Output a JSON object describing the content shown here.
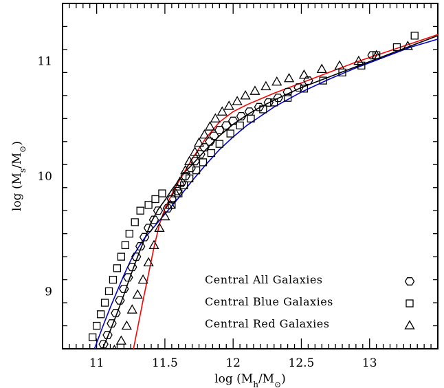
{
  "chart_data": {
    "type": "scatter",
    "title": "",
    "xlabel": "log (M_h/M_⊙)",
    "ylabel": "log (M_s/M_⊙)",
    "xlim": [
      10.75,
      13.5
    ],
    "ylim": [
      8.5,
      11.5
    ],
    "x_ticks": [
      11,
      11.5,
      12,
      12.5,
      13
    ],
    "x_tick_labels": [
      "11",
      "11.5",
      "12",
      "12.5",
      "13"
    ],
    "y_ticks": [
      9,
      10,
      11
    ],
    "y_tick_labels": [
      "9",
      "10",
      "11"
    ],
    "legend": "bottom-right",
    "series": [
      {
        "name": "Central All Galaxies",
        "marker": "hexagon",
        "color": "#000000",
        "points": [
          [
            11.05,
            8.54
          ],
          [
            11.08,
            8.62
          ],
          [
            11.11,
            8.72
          ],
          [
            11.14,
            8.81
          ],
          [
            11.17,
            8.92
          ],
          [
            11.2,
            9.02
          ],
          [
            11.23,
            9.12
          ],
          [
            11.26,
            9.21
          ],
          [
            11.29,
            9.3
          ],
          [
            11.32,
            9.39
          ],
          [
            11.35,
            9.47
          ],
          [
            11.38,
            9.55
          ],
          [
            11.42,
            9.62
          ],
          [
            11.45,
            9.7
          ],
          [
            11.52,
            9.72
          ],
          [
            11.55,
            9.8
          ],
          [
            11.59,
            9.87
          ],
          [
            11.62,
            9.94
          ],
          [
            11.65,
            10.0
          ],
          [
            11.69,
            10.07
          ],
          [
            11.72,
            10.13
          ],
          [
            11.76,
            10.19
          ],
          [
            11.79,
            10.25
          ],
          [
            11.83,
            10.3
          ],
          [
            11.86,
            10.35
          ],
          [
            11.9,
            10.4
          ],
          [
            11.95,
            10.44
          ],
          [
            12.0,
            10.48
          ],
          [
            12.06,
            10.52
          ],
          [
            12.12,
            10.56
          ],
          [
            12.19,
            10.6
          ],
          [
            12.26,
            10.64
          ],
          [
            12.33,
            10.68
          ],
          [
            12.4,
            10.73
          ],
          [
            12.48,
            10.77
          ],
          [
            12.55,
            10.83
          ],
          [
            13.02,
            11.05
          ]
        ]
      },
      {
        "name": "Central Blue Galaxies",
        "marker": "square",
        "color": "#000000",
        "points": [
          [
            10.97,
            8.6
          ],
          [
            11.0,
            8.7
          ],
          [
            11.03,
            8.8
          ],
          [
            11.06,
            8.9
          ],
          [
            11.09,
            9.0
          ],
          [
            11.12,
            9.1
          ],
          [
            11.15,
            9.2
          ],
          [
            11.18,
            9.3
          ],
          [
            11.21,
            9.4
          ],
          [
            11.24,
            9.5
          ],
          [
            11.28,
            9.6
          ],
          [
            11.32,
            9.7
          ],
          [
            11.38,
            9.75
          ],
          [
            11.43,
            9.8
          ],
          [
            11.48,
            9.85
          ],
          [
            11.55,
            9.75
          ],
          [
            11.6,
            9.85
          ],
          [
            11.64,
            9.92
          ],
          [
            11.68,
            9.98
          ],
          [
            11.73,
            10.05
          ],
          [
            11.78,
            10.12
          ],
          [
            11.84,
            10.2
          ],
          [
            11.9,
            10.28
          ],
          [
            11.98,
            10.37
          ],
          [
            12.05,
            10.44
          ],
          [
            12.13,
            10.5
          ],
          [
            12.22,
            10.58
          ],
          [
            12.3,
            10.64
          ],
          [
            12.4,
            10.68
          ],
          [
            12.52,
            10.76
          ],
          [
            12.66,
            10.83
          ],
          [
            12.8,
            10.9
          ],
          [
            12.94,
            10.96
          ],
          [
            13.05,
            11.05
          ],
          [
            13.2,
            11.12
          ],
          [
            13.33,
            11.22
          ]
        ]
      },
      {
        "name": "Central Red Galaxies",
        "marker": "triangle",
        "color": "#000000",
        "points": [
          [
            11.13,
            8.49
          ],
          [
            11.18,
            8.57
          ],
          [
            11.22,
            8.7
          ],
          [
            11.26,
            8.84
          ],
          [
            11.3,
            8.97
          ],
          [
            11.34,
            9.1
          ],
          [
            11.38,
            9.25
          ],
          [
            11.42,
            9.4
          ],
          [
            11.46,
            9.55
          ],
          [
            11.5,
            9.65
          ],
          [
            11.54,
            9.75
          ],
          [
            11.58,
            9.85
          ],
          [
            11.61,
            9.95
          ],
          [
            11.65,
            10.05
          ],
          [
            11.68,
            10.13
          ],
          [
            11.72,
            10.21
          ],
          [
            11.75,
            10.29
          ],
          [
            11.79,
            10.36
          ],
          [
            11.83,
            10.43
          ],
          [
            11.87,
            10.5
          ],
          [
            11.92,
            10.56
          ],
          [
            11.97,
            10.61
          ],
          [
            12.03,
            10.65
          ],
          [
            12.09,
            10.7
          ],
          [
            12.16,
            10.74
          ],
          [
            12.24,
            10.78
          ],
          [
            12.32,
            10.82
          ],
          [
            12.41,
            10.85
          ],
          [
            12.52,
            10.88
          ],
          [
            12.65,
            10.93
          ],
          [
            12.78,
            10.96
          ],
          [
            12.92,
            11.0
          ],
          [
            13.05,
            11.05
          ],
          [
            13.28,
            11.13
          ]
        ]
      }
    ],
    "curves": [
      {
        "color": "#000000",
        "points": [
          [
            10.97,
            8.31
          ],
          [
            11.0,
            8.39
          ],
          [
            11.05,
            8.52
          ],
          [
            11.1,
            8.66
          ],
          [
            11.15,
            8.81
          ],
          [
            11.2,
            8.97
          ],
          [
            11.25,
            9.14
          ],
          [
            11.3,
            9.3
          ],
          [
            11.35,
            9.45
          ],
          [
            11.4,
            9.6
          ],
          [
            11.45,
            9.71
          ],
          [
            11.5,
            9.79
          ],
          [
            11.55,
            9.88
          ],
          [
            11.6,
            9.96
          ],
          [
            11.65,
            10.04
          ],
          [
            11.7,
            10.1
          ],
          [
            11.8,
            10.23
          ],
          [
            11.9,
            10.35
          ],
          [
            12.0,
            10.45
          ],
          [
            12.1,
            10.53
          ],
          [
            12.2,
            10.6
          ],
          [
            12.3,
            10.66
          ],
          [
            12.5,
            10.77
          ],
          [
            12.7,
            10.86
          ],
          [
            12.9,
            10.95
          ],
          [
            13.1,
            11.04
          ],
          [
            13.3,
            11.13
          ],
          [
            13.5,
            11.22
          ]
        ]
      },
      {
        "color": "#0000cc",
        "points": [
          [
            10.93,
            8.32
          ],
          [
            10.97,
            8.46
          ],
          [
            11.0,
            8.55
          ],
          [
            11.05,
            8.71
          ],
          [
            11.1,
            8.86
          ],
          [
            11.15,
            9.0
          ],
          [
            11.2,
            9.14
          ],
          [
            11.25,
            9.27
          ],
          [
            11.3,
            9.37
          ],
          [
            11.35,
            9.46
          ],
          [
            11.4,
            9.53
          ],
          [
            11.45,
            9.6
          ],
          [
            11.5,
            9.67
          ],
          [
            11.55,
            9.74
          ],
          [
            11.6,
            9.81
          ],
          [
            11.7,
            9.96
          ],
          [
            11.8,
            10.1
          ],
          [
            11.9,
            10.23
          ],
          [
            12.0,
            10.34
          ],
          [
            12.1,
            10.44
          ],
          [
            12.2,
            10.52
          ],
          [
            12.3,
            10.6
          ],
          [
            12.5,
            10.73
          ],
          [
            12.7,
            10.84
          ],
          [
            12.9,
            10.94
          ],
          [
            13.1,
            11.03
          ],
          [
            13.3,
            11.12
          ],
          [
            13.5,
            11.19
          ]
        ]
      },
      {
        "color": "#ff0000",
        "points": [
          [
            11.24,
            8.35
          ],
          [
            11.27,
            8.5
          ],
          [
            11.3,
            8.68
          ],
          [
            11.34,
            8.92
          ],
          [
            11.38,
            9.15
          ],
          [
            11.42,
            9.38
          ],
          [
            11.46,
            9.58
          ],
          [
            11.5,
            9.72
          ],
          [
            11.55,
            9.84
          ],
          [
            11.6,
            9.95
          ],
          [
            11.65,
            10.05
          ],
          [
            11.7,
            10.15
          ],
          [
            11.8,
            10.33
          ],
          [
            11.9,
            10.47
          ],
          [
            12.0,
            10.56
          ],
          [
            12.1,
            10.62
          ],
          [
            12.2,
            10.67
          ],
          [
            12.3,
            10.72
          ],
          [
            12.5,
            10.81
          ],
          [
            12.7,
            10.9
          ],
          [
            12.9,
            10.99
          ],
          [
            13.1,
            11.07
          ],
          [
            13.3,
            11.15
          ],
          [
            13.5,
            11.23
          ]
        ]
      }
    ]
  }
}
